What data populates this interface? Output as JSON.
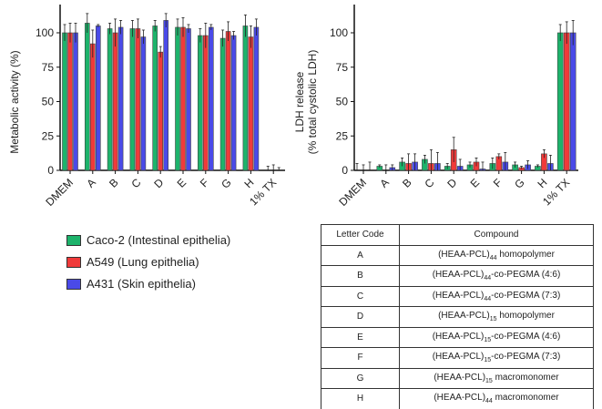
{
  "chart_data": [
    {
      "type": "bar",
      "ylabel": "Metabolic activity (%)",
      "ylim": [
        0,
        120
      ],
      "yticks": [
        0,
        25,
        50,
        75,
        100
      ],
      "categories": [
        "DMEM",
        "A",
        "B",
        "C",
        "D",
        "E",
        "F",
        "G",
        "H",
        "1% TX"
      ],
      "series": [
        {
          "name": "Caco-2 (Intestinal epithelia)",
          "values": [
            100,
            107,
            103,
            103,
            105,
            104,
            98,
            96,
            105,
            0
          ],
          "errors": [
            6,
            7,
            4,
            6,
            4,
            6,
            5,
            6,
            8,
            3
          ]
        },
        {
          "name": "A549 (Lung epithelia)",
          "values": [
            100,
            92,
            100,
            103,
            86,
            104,
            98,
            101,
            97,
            0
          ],
          "errors": [
            7,
            10,
            10,
            7,
            4,
            7,
            9,
            7,
            8,
            4
          ]
        },
        {
          "name": "A431 (Skin epithelia)",
          "values": [
            100,
            105,
            104,
            97,
            109,
            103,
            104,
            98,
            104,
            0
          ],
          "errors": [
            7,
            1,
            5,
            5,
            5,
            3,
            2,
            3,
            6,
            2
          ]
        }
      ]
    },
    {
      "type": "bar",
      "ylabel": "LDH release\n(% total cystolic LDH)",
      "ylim": [
        0,
        120
      ],
      "yticks": [
        0,
        25,
        50,
        75,
        100
      ],
      "categories": [
        "DMEM",
        "A",
        "B",
        "C",
        "D",
        "E",
        "F",
        "G",
        "H",
        "1% TX"
      ],
      "series": [
        {
          "name": "Caco-2 (Intestinal epithelia)",
          "values": [
            0,
            3,
            6,
            8,
            3,
            4,
            5,
            4,
            3,
            100
          ],
          "errors": [
            5,
            1,
            3,
            3,
            2,
            2,
            4,
            2,
            1,
            6
          ]
        },
        {
          "name": "A549 (Lung epithelia)",
          "values": [
            0,
            0,
            5,
            5,
            15,
            6,
            10,
            2,
            12,
            100
          ],
          "errors": [
            4,
            4,
            7,
            10,
            9,
            3,
            2,
            1,
            3,
            8
          ]
        },
        {
          "name": "A431 (Skin epithelia)",
          "values": [
            0,
            2,
            6,
            5,
            3,
            1,
            6,
            4,
            5,
            100
          ],
          "errors": [
            6,
            2,
            6,
            8,
            5,
            5,
            7,
            3,
            6,
            9
          ]
        }
      ]
    }
  ],
  "colors": [
    "#1db36b",
    "#f03a3a",
    "#4a4ae8"
  ],
  "legend": [
    "Caco-2 (Intestinal epithelia)",
    "A549 (Lung epithelia)",
    "A431 (Skin epithelia)"
  ],
  "table": {
    "headers": [
      "Letter Code",
      "Compound"
    ],
    "rows": [
      [
        "A",
        "(HEAA-PCL)",
        "44",
        " homopolymer"
      ],
      [
        "B",
        "(HEAA-PCL)",
        "44",
        "-co-PEGMA (4:6)"
      ],
      [
        "C",
        "(HEAA-PCL)",
        "44",
        "-co-PEGMA (7:3)"
      ],
      [
        "D",
        "(HEAA-PCL)",
        "15",
        " homopolymer"
      ],
      [
        "E",
        "(HEAA-PCL)",
        "15",
        "-co-PEGMA (4:6)"
      ],
      [
        "F",
        "(HEAA-PCL)",
        "15",
        "-co-PEGMA (7:3)"
      ],
      [
        "G",
        "(HEAA-PCL)",
        "15",
        " macromonomer"
      ],
      [
        "H",
        "(HEAA-PCL)",
        "44",
        " macromonomer"
      ]
    ]
  }
}
